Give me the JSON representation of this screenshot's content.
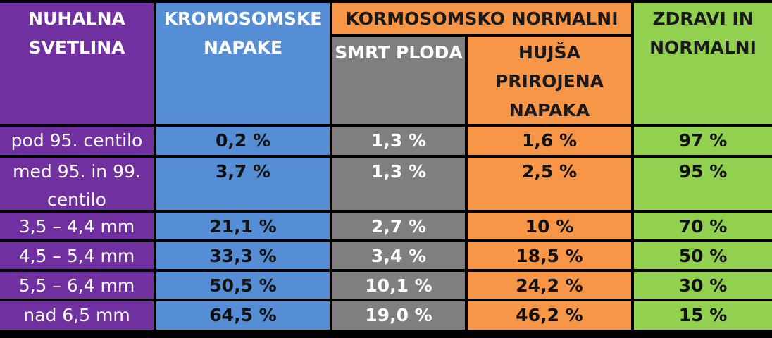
{
  "table": {
    "headers": [
      "NUHALNA SVETLINA",
      "KROMOSOMSKE NAPAKE",
      "KORMOSOMSKO NORMALNI",
      "ZDRAVI IN NORMALNI"
    ],
    "subheaders": [
      "SMRT PLODA",
      "HUJŠA PRIROJENA NAPAKA"
    ],
    "rows": [
      [
        "pod 95. centilo",
        "0,2 %",
        "1,3 %",
        "1,6 %",
        "97 %"
      ],
      [
        "med 95. in 99. centilo",
        "3,7 %",
        "1,3 %",
        "2,5 %",
        "95 %"
      ],
      [
        "3,5 – 4,4 mm",
        "21,1 %",
        "2,7 %",
        "10 %",
        "70 %"
      ],
      [
        "4,5 – 5,4 mm",
        "33,3 %",
        "3,4 %",
        "18,5 %",
        "50 %"
      ],
      [
        "5,5 – 6,4 mm",
        "50,5 %",
        "10,1 %",
        "24,2 %",
        "30 %"
      ],
      [
        "nad 6,5 mm",
        "64,5 %",
        "19,0 %",
        "46,2 %",
        "15 %"
      ]
    ]
  }
}
